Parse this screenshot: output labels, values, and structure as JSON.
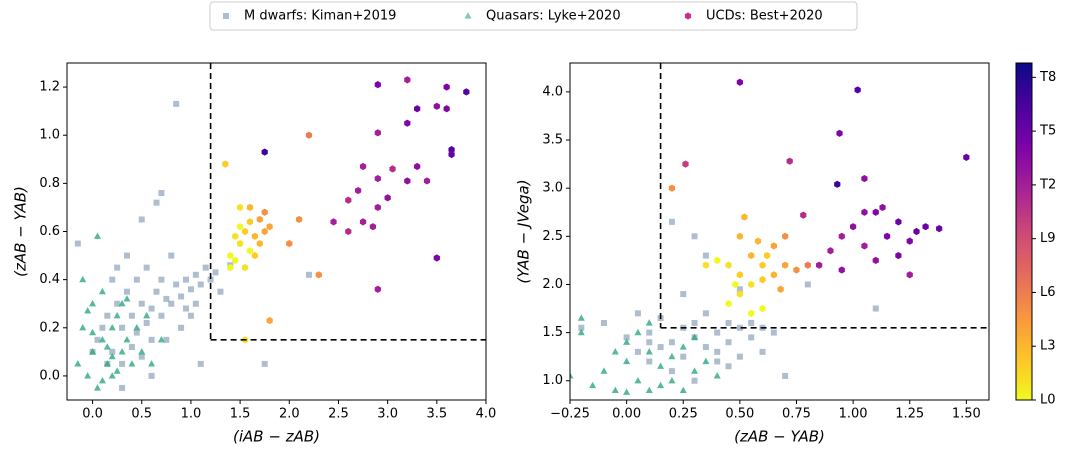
{
  "chart_data": [
    {
      "type": "scatter",
      "x_label": "(iAB − zAB)",
      "y_label": "(zAB − YAB)",
      "xlim": [
        -0.26,
        4.0
      ],
      "ylim": [
        -0.1,
        1.3
      ],
      "xticks": [
        {
          "value": 0,
          "label": "0.0"
        },
        0.5,
        {
          "value": 1,
          "label": "1.0"
        },
        1.5,
        {
          "value": 2,
          "label": "2.0"
        },
        2.5,
        {
          "value": 3,
          "label": "3.0"
        },
        3.5,
        {
          "value": 4,
          "label": "4.0"
        }
      ],
      "yticks": [
        {
          "value": 0,
          "label": "0.0"
        },
        0.2,
        0.4,
        0.6,
        0.8,
        {
          "value": 1,
          "label": "1.0"
        },
        1.2
      ],
      "cuts": {
        "x": 1.2,
        "y": 0.15
      },
      "series": [
        {
          "name": "M dwarfs: Kiman+2019",
          "marker": "square",
          "color": "#7a93ad",
          "x": [
            -0.15,
            0.0,
            0.05,
            0.1,
            0.15,
            0.2,
            0.25,
            0.3,
            0.3,
            0.35,
            0.4,
            0.4,
            0.45,
            0.45,
            0.5,
            0.5,
            0.5,
            0.55,
            0.55,
            0.6,
            0.6,
            0.65,
            0.65,
            0.7,
            0.7,
            0.75,
            0.75,
            0.8,
            0.85,
            0.85,
            0.9,
            0.9,
            0.95,
            1.0,
            1.0,
            1.05,
            1.1,
            1.1,
            1.15,
            1.2,
            1.25,
            1.3,
            1.4,
            1.75,
            2.2,
            0.3,
            0.2,
            0.35,
            0.25,
            0.6,
            0.8,
            0.15,
            0.95,
            1.05,
            0.7
          ],
          "values": [
            0.55,
            0.1,
            0.15,
            0.2,
            0.25,
            0.1,
            0.3,
            0.2,
            0.05,
            0.35,
            0.25,
            0.12,
            0.4,
            0.18,
            0.3,
            0.08,
            0.65,
            0.22,
            0.45,
            0.28,
            0.0,
            0.35,
            0.72,
            0.25,
            0.76,
            0.32,
            0.15,
            0.3,
            0.38,
            1.13,
            0.33,
            0.2,
            0.4,
            0.36,
            0.25,
            0.42,
            0.38,
            0.05,
            0.45,
            0.4,
            0.43,
            0.35,
            0.46,
            0.05,
            0.42,
            -0.05,
            0.4,
            0.5,
            0.45,
            0.15,
            0.5,
            0.05,
            0.28,
            0.3,
            0.4
          ]
        },
        {
          "name": "Quasars: Lyke+2020",
          "marker": "triangle",
          "color": "#2ca87f",
          "x": [
            -0.15,
            -0.1,
            -0.05,
            0.0,
            0.0,
            0.05,
            0.1,
            0.1,
            0.15,
            0.2,
            0.2,
            0.25,
            0.3,
            0.3,
            0.35,
            0.4,
            0.45,
            0.5,
            0.55,
            0.6,
            0.05,
            -0.1,
            0.15,
            0.25,
            0.0,
            0.1,
            0.35,
            0.7,
            0.2,
            -0.05
          ],
          "values": [
            0.05,
            0.2,
            0.0,
            0.1,
            0.3,
            -0.05,
            0.15,
            0.35,
            0.05,
            0.2,
            0.0,
            0.25,
            0.1,
            0.3,
            0.15,
            0.05,
            0.2,
            0.1,
            0.25,
            0.05,
            0.58,
            0.4,
            0.12,
            0.02,
            0.18,
            -0.02,
            0.32,
            0.15,
            0.08,
            0.27
          ]
        },
        {
          "name": "UCDs: Best+2020",
          "marker": "hexagon",
          "x": [
            1.5,
            1.55,
            1.6,
            1.45,
            1.65,
            1.7,
            1.5,
            1.6,
            1.75,
            1.4,
            1.55,
            1.65,
            1.5,
            1.45,
            1.7,
            1.4,
            1.75,
            1.6,
            1.35,
            1.75,
            2.2,
            2.3,
            1.8,
            2.1,
            2.0,
            1.8,
            1.55,
            2.9,
            3.2,
            3.6,
            3.8,
            3.3,
            3.5,
            3.2,
            2.9,
            3.6,
            3.65,
            3.65,
            2.75,
            2.9,
            3.05,
            3.3,
            3.2,
            3.4,
            2.7,
            3.0,
            2.6,
            2.45,
            2.75,
            2.9,
            2.85,
            2.6,
            3.5,
            2.9
          ],
          "values": [
            0.55,
            0.6,
            0.52,
            0.48,
            0.58,
            0.65,
            0.7,
            0.7,
            0.68,
            0.5,
            0.45,
            0.5,
            0.62,
            0.58,
            0.55,
            0.45,
            0.6,
            0.64,
            0.88,
            0.93,
            1.0,
            0.42,
            0.62,
            0.65,
            0.55,
            0.23,
            0.15,
            1.21,
            1.23,
            1.2,
            1.18,
            1.11,
            1.12,
            1.05,
            1.01,
            1.11,
            0.94,
            0.92,
            0.87,
            0.82,
            0.86,
            0.87,
            0.81,
            0.81,
            0.77,
            0.74,
            0.73,
            0.64,
            0.64,
            0.7,
            0.62,
            0.6,
            0.49,
            0.36
          ],
          "c": [
            1,
            2,
            0,
            0,
            3,
            4,
            1,
            3,
            5,
            0,
            1,
            2,
            0,
            1,
            3,
            0,
            4,
            2,
            2,
            17,
            6,
            5,
            4,
            5,
            5,
            4,
            1,
            14,
            12,
            14,
            16,
            15,
            13,
            14,
            12,
            14,
            16,
            15,
            12,
            12,
            11,
            13,
            13,
            12,
            12,
            13,
            11,
            12,
            12,
            12,
            12,
            11,
            14,
            12
          ]
        }
      ]
    },
    {
      "type": "scatter",
      "x_label": "(zAB − YAB)",
      "y_label": "(YAB − JVega)",
      "xlim": [
        -0.25,
        1.6
      ],
      "ylim": [
        0.8,
        4.3
      ],
      "xticks": [
        {
          "value": -0.25,
          "label": "−0.25"
        },
        {
          "value": 0,
          "label": "0.00"
        },
        0.25,
        {
          "value": 0.5,
          "label": "0.50"
        },
        0.75,
        {
          "value": 1,
          "label": "1.00"
        },
        1.25,
        {
          "value": 1.5,
          "label": "1.50"
        }
      ],
      "yticks": [
        {
          "value": 1,
          "label": "1.0"
        },
        1.5,
        {
          "value": 2,
          "label": "2.0"
        },
        2.5,
        {
          "value": 3,
          "label": "3.0"
        },
        3.5,
        {
          "value": 4,
          "label": "4.0"
        }
      ],
      "cuts": {
        "x": 0.15,
        "y": 1.55
      },
      "series": [
        {
          "marker": "square",
          "color": "#7a93ad",
          "x": [
            -0.2,
            -0.1,
            0.0,
            0.05,
            0.1,
            0.1,
            0.15,
            0.2,
            0.2,
            0.25,
            0.25,
            0.3,
            0.3,
            0.35,
            0.35,
            0.4,
            0.4,
            0.45,
            0.45,
            0.5,
            0.5,
            0.55,
            0.6,
            0.65,
            0.7,
            0.8,
            1.1,
            0.3,
            0.2,
            0.35,
            0.45,
            0.15,
            0.05,
            0.25,
            0.4,
            0.55,
            0.6,
            0.3,
            0.5,
            0.1
          ],
          "values": [
            1.55,
            1.6,
            1.45,
            1.3,
            1.5,
            1.2,
            1.65,
            1.4,
            1.1,
            1.55,
            1.25,
            1.45,
            2.5,
            1.35,
            2.3,
            1.5,
            1.2,
            1.4,
            1.15,
            1.55,
            1.95,
            1.45,
            1.3,
            1.5,
            1.05,
            2.0,
            1.75,
            1.6,
            2.65,
            1.7,
            1.6,
            1.35,
            1.7,
            1.9,
            1.3,
            1.6,
            1.55,
            1.0,
            1.25,
            1.4
          ]
        },
        {
          "marker": "triangle",
          "color": "#2ca87f",
          "x": [
            -0.25,
            -0.2,
            -0.15,
            -0.1,
            -0.05,
            0.0,
            0.0,
            0.05,
            0.1,
            0.1,
            0.15,
            0.2,
            0.2,
            0.25,
            0.3,
            0.35,
            -0.2,
            0.05,
            0.15,
            0.25,
            -0.05,
            0.1,
            0.3,
            0.4,
            0.0
          ],
          "values": [
            1.05,
            1.65,
            0.95,
            1.1,
            0.9,
            1.2,
            1.4,
            1.0,
            1.3,
            0.9,
            1.15,
            1.25,
            1.0,
            1.35,
            1.1,
            1.2,
            1.5,
            1.5,
            0.95,
            0.9,
            1.3,
            1.6,
            1.45,
            1.05,
            0.88
          ]
        },
        {
          "marker": "hexagon",
          "x": [
            0.45,
            0.5,
            0.5,
            0.55,
            0.55,
            0.6,
            0.6,
            0.65,
            0.65,
            0.7,
            0.7,
            0.75,
            0.5,
            0.45,
            0.55,
            0.6,
            0.4,
            0.35,
            0.58,
            0.62,
            0.52,
            0.48,
            0.68,
            0.8,
            0.85,
            0.9,
            0.95,
            1.0,
            1.05,
            1.1,
            1.13,
            1.15,
            1.2,
            1.25,
            1.28,
            1.32,
            1.38,
            1.2,
            1.1,
            1.25,
            0.95,
            1.05,
            0.5,
            1.02,
            0.94,
            1.5,
            0.26,
            0.72,
            0.93,
            1.05,
            0.2,
            0.78
          ],
          "values": [
            1.8,
            1.9,
            2.1,
            2.0,
            2.3,
            2.2,
            1.75,
            2.4,
            2.1,
            2.2,
            2.5,
            2.15,
            2.5,
            2.2,
            1.7,
            2.05,
            2.25,
            2.2,
            2.45,
            2.3,
            2.7,
            2.0,
            1.95,
            2.2,
            2.2,
            2.35,
            2.15,
            2.6,
            2.4,
            2.75,
            2.8,
            2.5,
            2.65,
            2.45,
            2.55,
            2.6,
            2.58,
            2.3,
            2.25,
            2.1,
            2.5,
            2.75,
            4.1,
            4.02,
            3.57,
            3.32,
            3.25,
            3.28,
            3.04,
            3.1,
            3.0,
            2.72
          ],
          "c": [
            0,
            1,
            2,
            1,
            3,
            2,
            0,
            4,
            3,
            4,
            5,
            5,
            3,
            1,
            0,
            2,
            0,
            1,
            3,
            2,
            3,
            0,
            4,
            6,
            12,
            12,
            13,
            13,
            12,
            14,
            13,
            14,
            15,
            14,
            15,
            15,
            15,
            14,
            13,
            12,
            12,
            13,
            14,
            16,
            14,
            15,
            10,
            11,
            17,
            13,
            5,
            11
          ]
        }
      ]
    }
  ],
  "colorbar": {
    "colormap": "plasma_r",
    "clim": [
      0,
      18.8
    ],
    "ticks": [
      {
        "value": 0,
        "label": "L0"
      },
      {
        "value": 3,
        "label": "L3"
      },
      {
        "value": 6,
        "label": "L6"
      },
      {
        "value": 9,
        "label": "L9"
      },
      {
        "value": 12,
        "label": "T2"
      },
      {
        "value": 15,
        "label": "T5"
      },
      {
        "value": 18,
        "label": "T8"
      }
    ]
  }
}
